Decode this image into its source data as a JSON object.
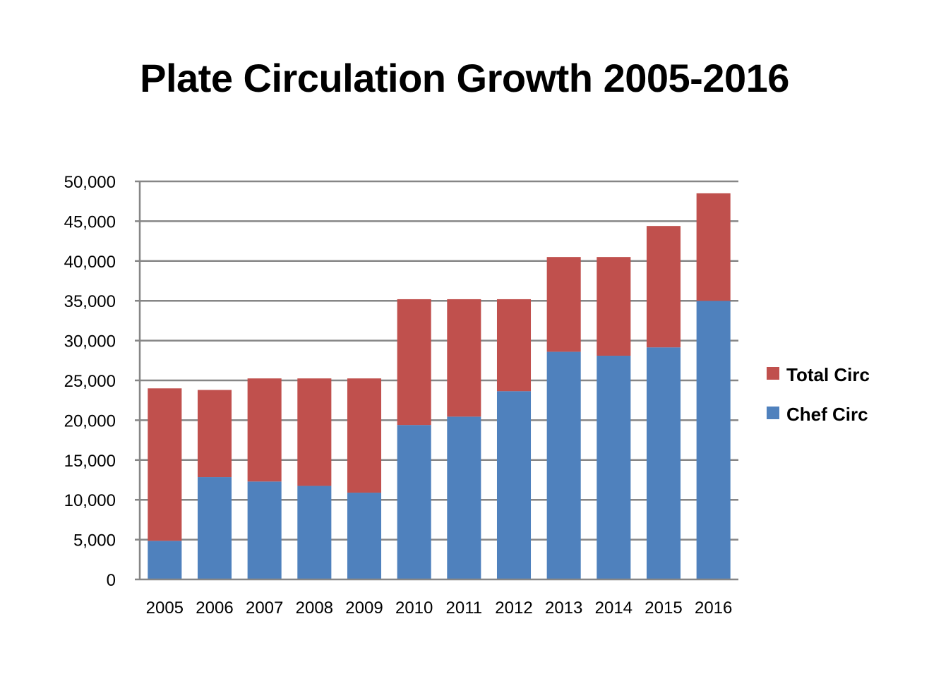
{
  "chart_data": {
    "type": "bar",
    "stacked": true,
    "title": "Plate Circulation Growth 2005-2016",
    "xlabel": "",
    "ylabel": "",
    "categories": [
      "2005",
      "2006",
      "2007",
      "2008",
      "2009",
      "2010",
      "2011",
      "2012",
      "2013",
      "2014",
      "2015",
      "2016"
    ],
    "series": [
      {
        "name": "Chef Circ",
        "color": "#4F81BD",
        "values": [
          4850,
          12850,
          12300,
          11750,
          10900,
          19400,
          20450,
          23650,
          28600,
          28100,
          29150,
          35000
        ]
      },
      {
        "name": "Total Circ",
        "color": "#C0504D",
        "values": [
          19150,
          10950,
          12950,
          13500,
          14350,
          15800,
          14750,
          11550,
          11900,
          12400,
          15250,
          13500
        ]
      }
    ],
    "ylim": [
      0,
      50000
    ],
    "yticks": [
      0,
      5000,
      10000,
      15000,
      20000,
      25000,
      30000,
      35000,
      40000,
      45000,
      50000
    ],
    "ytick_labels": [
      "0",
      "5,000",
      "10,000",
      "15,000",
      "20,000",
      "25,000",
      "30,000",
      "35,000",
      "40,000",
      "45,000",
      "50,000"
    ],
    "grid": true,
    "gridline_color": "#868686",
    "legend": {
      "placement": "right",
      "entries": [
        "Total Circ",
        "Chef Circ"
      ]
    }
  }
}
